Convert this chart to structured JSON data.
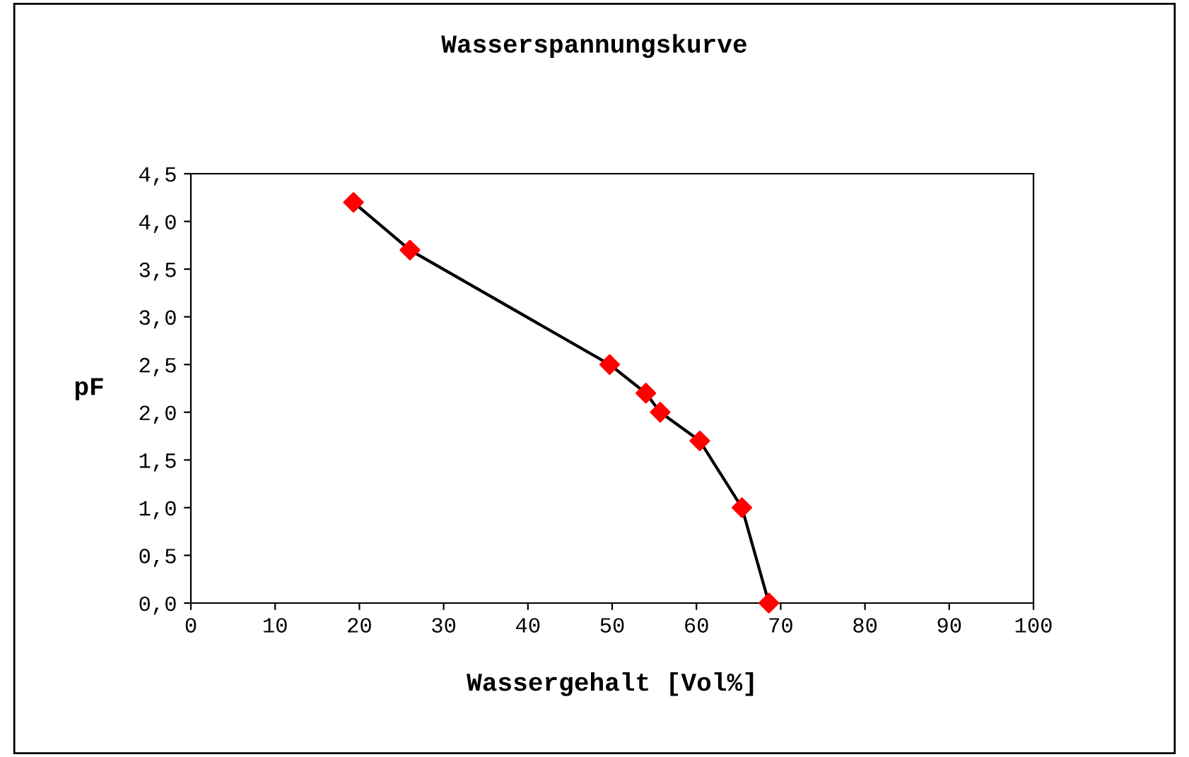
{
  "chart_data": {
    "type": "line",
    "title": "Wasserspannungskurve",
    "xlabel": "Wassergehalt [Vol%]",
    "ylabel": "pF",
    "series": [
      {
        "color": "#000000",
        "marker": "none",
        "x": [
          19.3,
          26.0,
          49.7,
          54.0,
          55.7,
          60.4,
          65.4,
          68.6
        ],
        "values": [
          4.2,
          3.7,
          2.5,
          2.2,
          2.0,
          1.7,
          1.0,
          0.0
        ]
      },
      {
        "type": "scatter",
        "color": "#ff0000",
        "marker": "diamond",
        "x": [
          19.3,
          26.0,
          49.7,
          54.0,
          55.7,
          60.4,
          65.4,
          68.6
        ],
        "values": [
          4.2,
          3.7,
          2.5,
          2.2,
          2.0,
          1.7,
          1.0,
          0.0
        ]
      }
    ],
    "xlim": [
      0,
      100
    ],
    "xticks": [
      0,
      10,
      20,
      30,
      40,
      50,
      60,
      70,
      80,
      90,
      100
    ],
    "ylim": [
      0,
      4.5
    ],
    "yticks": [
      {
        "value": 0,
        "label": "0,0"
      },
      {
        "value": 0.5,
        "label": "0,5"
      },
      {
        "value": 1,
        "label": "1,0"
      },
      {
        "value": 1.5,
        "label": "1,5"
      },
      {
        "value": 2,
        "label": "2,0"
      },
      {
        "value": 2.5,
        "label": "2,5"
      },
      {
        "value": 3,
        "label": "3,0"
      },
      {
        "value": 3.5,
        "label": "3,5"
      },
      {
        "value": 4,
        "label": "4,0"
      },
      {
        "value": 4.5,
        "label": "4,5"
      }
    ],
    "grid": false,
    "legend": false
  }
}
